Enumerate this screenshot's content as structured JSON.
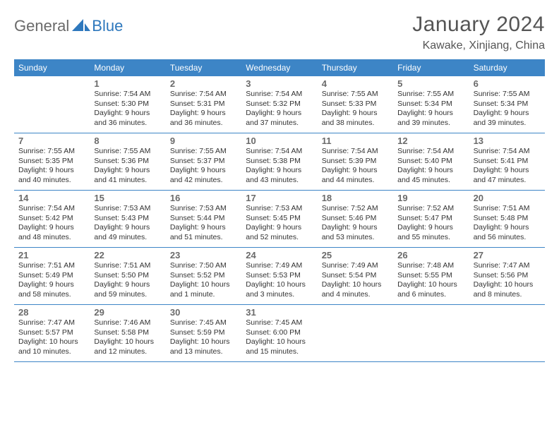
{
  "brand": {
    "part1": "General",
    "part2": "Blue"
  },
  "title": "January 2024",
  "subtitle": "Kawake, Xinjiang, China",
  "colors": {
    "header_bg": "#3d85c6",
    "header_text": "#ffffff",
    "daynum": "#6a6a6a",
    "rule": "#3d85c6",
    "body_text": "#333333",
    "title_text": "#555555"
  },
  "dow": [
    "Sunday",
    "Monday",
    "Tuesday",
    "Wednesday",
    "Thursday",
    "Friday",
    "Saturday"
  ],
  "weeks": [
    [
      null,
      {
        "n": "1",
        "sr": "Sunrise: 7:54 AM",
        "ss": "Sunset: 5:30 PM",
        "d1": "Daylight: 9 hours",
        "d2": "and 36 minutes."
      },
      {
        "n": "2",
        "sr": "Sunrise: 7:54 AM",
        "ss": "Sunset: 5:31 PM",
        "d1": "Daylight: 9 hours",
        "d2": "and 36 minutes."
      },
      {
        "n": "3",
        "sr": "Sunrise: 7:54 AM",
        "ss": "Sunset: 5:32 PM",
        "d1": "Daylight: 9 hours",
        "d2": "and 37 minutes."
      },
      {
        "n": "4",
        "sr": "Sunrise: 7:55 AM",
        "ss": "Sunset: 5:33 PM",
        "d1": "Daylight: 9 hours",
        "d2": "and 38 minutes."
      },
      {
        "n": "5",
        "sr": "Sunrise: 7:55 AM",
        "ss": "Sunset: 5:34 PM",
        "d1": "Daylight: 9 hours",
        "d2": "and 39 minutes."
      },
      {
        "n": "6",
        "sr": "Sunrise: 7:55 AM",
        "ss": "Sunset: 5:34 PM",
        "d1": "Daylight: 9 hours",
        "d2": "and 39 minutes."
      }
    ],
    [
      {
        "n": "7",
        "sr": "Sunrise: 7:55 AM",
        "ss": "Sunset: 5:35 PM",
        "d1": "Daylight: 9 hours",
        "d2": "and 40 minutes."
      },
      {
        "n": "8",
        "sr": "Sunrise: 7:55 AM",
        "ss": "Sunset: 5:36 PM",
        "d1": "Daylight: 9 hours",
        "d2": "and 41 minutes."
      },
      {
        "n": "9",
        "sr": "Sunrise: 7:55 AM",
        "ss": "Sunset: 5:37 PM",
        "d1": "Daylight: 9 hours",
        "d2": "and 42 minutes."
      },
      {
        "n": "10",
        "sr": "Sunrise: 7:54 AM",
        "ss": "Sunset: 5:38 PM",
        "d1": "Daylight: 9 hours",
        "d2": "and 43 minutes."
      },
      {
        "n": "11",
        "sr": "Sunrise: 7:54 AM",
        "ss": "Sunset: 5:39 PM",
        "d1": "Daylight: 9 hours",
        "d2": "and 44 minutes."
      },
      {
        "n": "12",
        "sr": "Sunrise: 7:54 AM",
        "ss": "Sunset: 5:40 PM",
        "d1": "Daylight: 9 hours",
        "d2": "and 45 minutes."
      },
      {
        "n": "13",
        "sr": "Sunrise: 7:54 AM",
        "ss": "Sunset: 5:41 PM",
        "d1": "Daylight: 9 hours",
        "d2": "and 47 minutes."
      }
    ],
    [
      {
        "n": "14",
        "sr": "Sunrise: 7:54 AM",
        "ss": "Sunset: 5:42 PM",
        "d1": "Daylight: 9 hours",
        "d2": "and 48 minutes."
      },
      {
        "n": "15",
        "sr": "Sunrise: 7:53 AM",
        "ss": "Sunset: 5:43 PM",
        "d1": "Daylight: 9 hours",
        "d2": "and 49 minutes."
      },
      {
        "n": "16",
        "sr": "Sunrise: 7:53 AM",
        "ss": "Sunset: 5:44 PM",
        "d1": "Daylight: 9 hours",
        "d2": "and 51 minutes."
      },
      {
        "n": "17",
        "sr": "Sunrise: 7:53 AM",
        "ss": "Sunset: 5:45 PM",
        "d1": "Daylight: 9 hours",
        "d2": "and 52 minutes."
      },
      {
        "n": "18",
        "sr": "Sunrise: 7:52 AM",
        "ss": "Sunset: 5:46 PM",
        "d1": "Daylight: 9 hours",
        "d2": "and 53 minutes."
      },
      {
        "n": "19",
        "sr": "Sunrise: 7:52 AM",
        "ss": "Sunset: 5:47 PM",
        "d1": "Daylight: 9 hours",
        "d2": "and 55 minutes."
      },
      {
        "n": "20",
        "sr": "Sunrise: 7:51 AM",
        "ss": "Sunset: 5:48 PM",
        "d1": "Daylight: 9 hours",
        "d2": "and 56 minutes."
      }
    ],
    [
      {
        "n": "21",
        "sr": "Sunrise: 7:51 AM",
        "ss": "Sunset: 5:49 PM",
        "d1": "Daylight: 9 hours",
        "d2": "and 58 minutes."
      },
      {
        "n": "22",
        "sr": "Sunrise: 7:51 AM",
        "ss": "Sunset: 5:50 PM",
        "d1": "Daylight: 9 hours",
        "d2": "and 59 minutes."
      },
      {
        "n": "23",
        "sr": "Sunrise: 7:50 AM",
        "ss": "Sunset: 5:52 PM",
        "d1": "Daylight: 10 hours",
        "d2": "and 1 minute."
      },
      {
        "n": "24",
        "sr": "Sunrise: 7:49 AM",
        "ss": "Sunset: 5:53 PM",
        "d1": "Daylight: 10 hours",
        "d2": "and 3 minutes."
      },
      {
        "n": "25",
        "sr": "Sunrise: 7:49 AM",
        "ss": "Sunset: 5:54 PM",
        "d1": "Daylight: 10 hours",
        "d2": "and 4 minutes."
      },
      {
        "n": "26",
        "sr": "Sunrise: 7:48 AM",
        "ss": "Sunset: 5:55 PM",
        "d1": "Daylight: 10 hours",
        "d2": "and 6 minutes."
      },
      {
        "n": "27",
        "sr": "Sunrise: 7:47 AM",
        "ss": "Sunset: 5:56 PM",
        "d1": "Daylight: 10 hours",
        "d2": "and 8 minutes."
      }
    ],
    [
      {
        "n": "28",
        "sr": "Sunrise: 7:47 AM",
        "ss": "Sunset: 5:57 PM",
        "d1": "Daylight: 10 hours",
        "d2": "and 10 minutes."
      },
      {
        "n": "29",
        "sr": "Sunrise: 7:46 AM",
        "ss": "Sunset: 5:58 PM",
        "d1": "Daylight: 10 hours",
        "d2": "and 12 minutes."
      },
      {
        "n": "30",
        "sr": "Sunrise: 7:45 AM",
        "ss": "Sunset: 5:59 PM",
        "d1": "Daylight: 10 hours",
        "d2": "and 13 minutes."
      },
      {
        "n": "31",
        "sr": "Sunrise: 7:45 AM",
        "ss": "Sunset: 6:00 PM",
        "d1": "Daylight: 10 hours",
        "d2": "and 15 minutes."
      },
      null,
      null,
      null
    ]
  ]
}
